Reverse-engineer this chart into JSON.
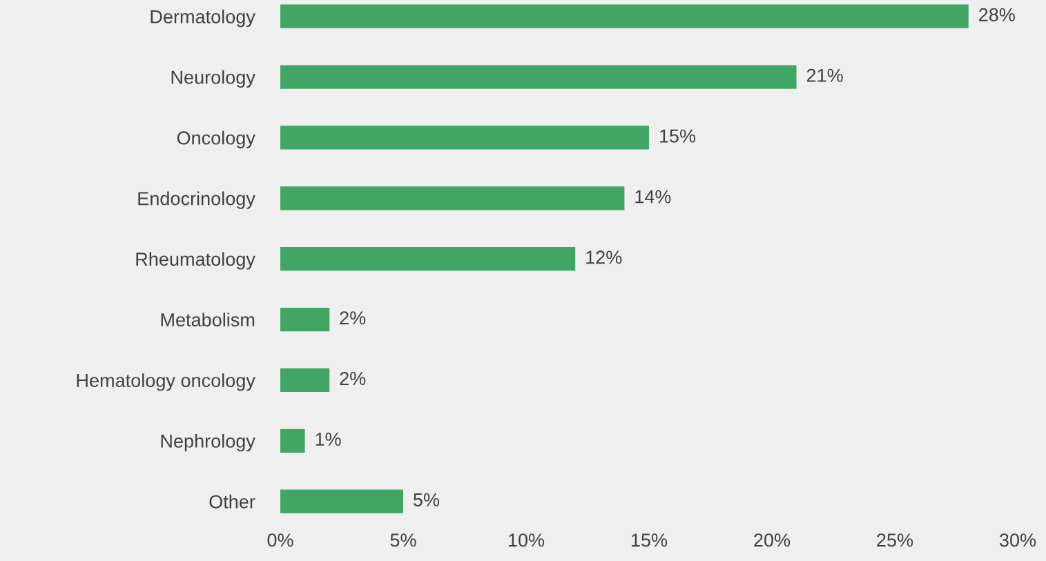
{
  "chart_data": {
    "type": "bar",
    "orientation": "horizontal",
    "categories": [
      "Dermatology",
      "Neurology",
      "Oncology",
      "Endocrinology",
      "Rheumatology",
      "Metabolism",
      "Hematology oncology",
      "Nephrology",
      "Other"
    ],
    "values": [
      28,
      21,
      15,
      14,
      12,
      2,
      2,
      1,
      5
    ],
    "value_labels": [
      "28%",
      "21%",
      "15%",
      "14%",
      "12%",
      "2%",
      "2%",
      "1%",
      "5%"
    ],
    "color": "#41a563",
    "xlim": [
      0,
      30
    ],
    "xticks": [
      {
        "value": 0,
        "label": "0%"
      },
      {
        "value": 5,
        "label": "5%"
      },
      {
        "value": 10,
        "label": "10%"
      },
      {
        "value": 15,
        "label": "15%"
      },
      {
        "value": 20,
        "label": "20%"
      },
      {
        "value": 25,
        "label": "25%"
      },
      {
        "value": 30,
        "label": "30%"
      }
    ],
    "grid": false
  }
}
